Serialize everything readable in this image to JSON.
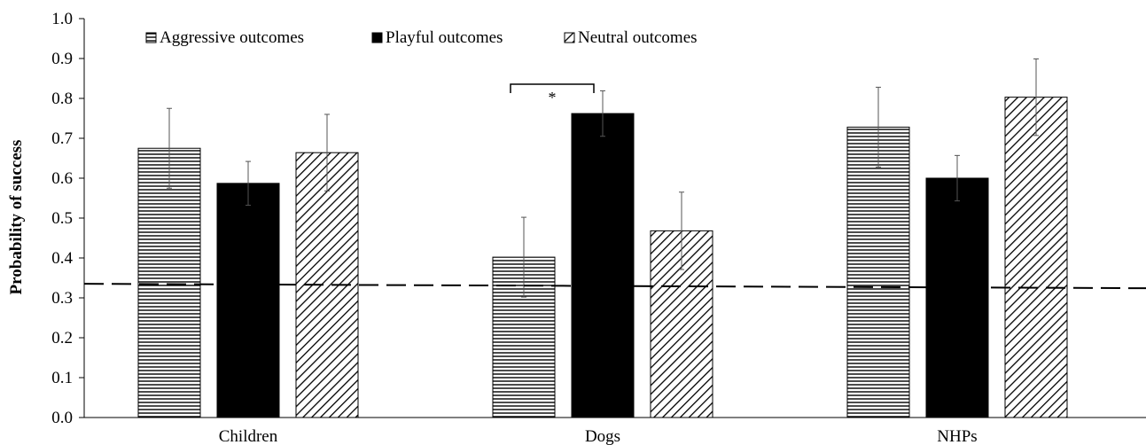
{
  "chart_data": {
    "type": "bar",
    "title": "",
    "xlabel": "",
    "ylabel": "Probability of success",
    "ylim": [
      0,
      1.0
    ],
    "yticks": [
      "0.0",
      "0.1",
      "0.2",
      "0.3",
      "0.4",
      "0.5",
      "0.6",
      "0.7",
      "0.8",
      "0.9",
      "1.0"
    ],
    "categories": [
      "Children",
      "Dogs",
      "NHPs"
    ],
    "series": [
      {
        "name": "Aggressive outcomes",
        "pattern": "horizontal-lines",
        "values": [
          0.675,
          0.402,
          0.728
        ],
        "errors": [
          0.1,
          0.1,
          0.1
        ]
      },
      {
        "name": "Playful outcomes",
        "pattern": "solid-black",
        "values": [
          0.587,
          0.762,
          0.6
        ],
        "errors": [
          0.055,
          0.057,
          0.057
        ]
      },
      {
        "name": "Neutral outcomes",
        "pattern": "diagonal-lines",
        "values": [
          0.664,
          0.468,
          0.803
        ],
        "errors": [
          0.096,
          0.097,
          0.096
        ]
      }
    ],
    "reference_line": {
      "value": 0.333,
      "style": "dashed"
    },
    "significance": [
      {
        "category": "Dogs",
        "between": [
          "Aggressive outcomes",
          "Playful outcomes"
        ],
        "label": "*"
      }
    ],
    "legend_position": "top",
    "grid": false,
    "colors": {
      "bar_fill": "#000000",
      "background": "#ffffff"
    }
  }
}
